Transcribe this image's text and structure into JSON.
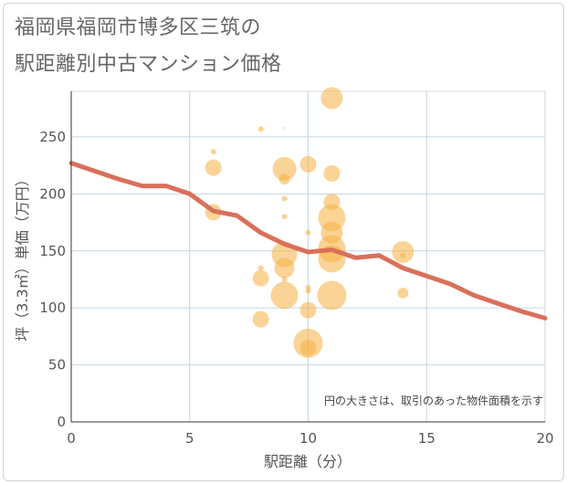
{
  "title_line1": "福岡県福岡市博多区三筑の",
  "title_line2": "駅距離別中古マンション価格",
  "note": "円の大きさは、取引のあった物件面積を示す",
  "chart_data": {
    "type": "scatter",
    "xlabel": "駅距離（分）",
    "ylabel": "坪（3.3㎡）単価（万円）",
    "xlim": [
      0,
      20
    ],
    "ylim": [
      0,
      290
    ],
    "xticks": [
      0,
      5,
      10,
      15,
      20
    ],
    "yticks": [
      0,
      50,
      100,
      150,
      200,
      250
    ],
    "grid": true,
    "bubble_color": "#f5b041",
    "line_color": "#d9705a",
    "points": [
      {
        "x": 6,
        "y": 237,
        "s": 3
      },
      {
        "x": 6,
        "y": 223,
        "s": 9
      },
      {
        "x": 6,
        "y": 184,
        "s": 9
      },
      {
        "x": 8,
        "y": 257,
        "s": 3
      },
      {
        "x": 8,
        "y": 135,
        "s": 3
      },
      {
        "x": 8,
        "y": 126,
        "s": 9
      },
      {
        "x": 8,
        "y": 90,
        "s": 9
      },
      {
        "x": 9,
        "y": 258,
        "s": 1
      },
      {
        "x": 9,
        "y": 222,
        "s": 13
      },
      {
        "x": 9,
        "y": 213,
        "s": 6
      },
      {
        "x": 9,
        "y": 196,
        "s": 3
      },
      {
        "x": 9,
        "y": 180,
        "s": 3
      },
      {
        "x": 9,
        "y": 147,
        "s": 14
      },
      {
        "x": 9,
        "y": 135,
        "s": 11
      },
      {
        "x": 9,
        "y": 125,
        "s": 3
      },
      {
        "x": 9,
        "y": 111,
        "s": 15
      },
      {
        "x": 10,
        "y": 226,
        "s": 9
      },
      {
        "x": 10,
        "y": 166,
        "s": 3
      },
      {
        "x": 10,
        "y": 118,
        "s": 3
      },
      {
        "x": 10,
        "y": 115,
        "s": 3
      },
      {
        "x": 10,
        "y": 98,
        "s": 9
      },
      {
        "x": 10,
        "y": 69,
        "s": 16
      },
      {
        "x": 10,
        "y": 65,
        "s": 9
      },
      {
        "x": 11,
        "y": 284,
        "s": 12
      },
      {
        "x": 11,
        "y": 218,
        "s": 9
      },
      {
        "x": 11,
        "y": 193,
        "s": 9
      },
      {
        "x": 11,
        "y": 179,
        "s": 15
      },
      {
        "x": 11,
        "y": 166,
        "s": 12
      },
      {
        "x": 11,
        "y": 152,
        "s": 15
      },
      {
        "x": 11,
        "y": 143,
        "s": 15
      },
      {
        "x": 11,
        "y": 111,
        "s": 16
      },
      {
        "x": 14,
        "y": 149,
        "s": 12
      },
      {
        "x": 14,
        "y": 146,
        "s": 3
      },
      {
        "x": 14,
        "y": 113,
        "s": 6
      }
    ],
    "trend": {
      "x": [
        0,
        1,
        2,
        3,
        4,
        5,
        6,
        7,
        8,
        9,
        10,
        11,
        12,
        13,
        14,
        15,
        16,
        17,
        18,
        19,
        20
      ],
      "y": [
        227,
        220,
        213,
        207,
        207,
        200,
        185,
        181,
        166,
        156,
        149,
        151,
        144,
        146,
        135,
        128,
        121,
        111,
        104,
        97,
        91
      ]
    }
  }
}
